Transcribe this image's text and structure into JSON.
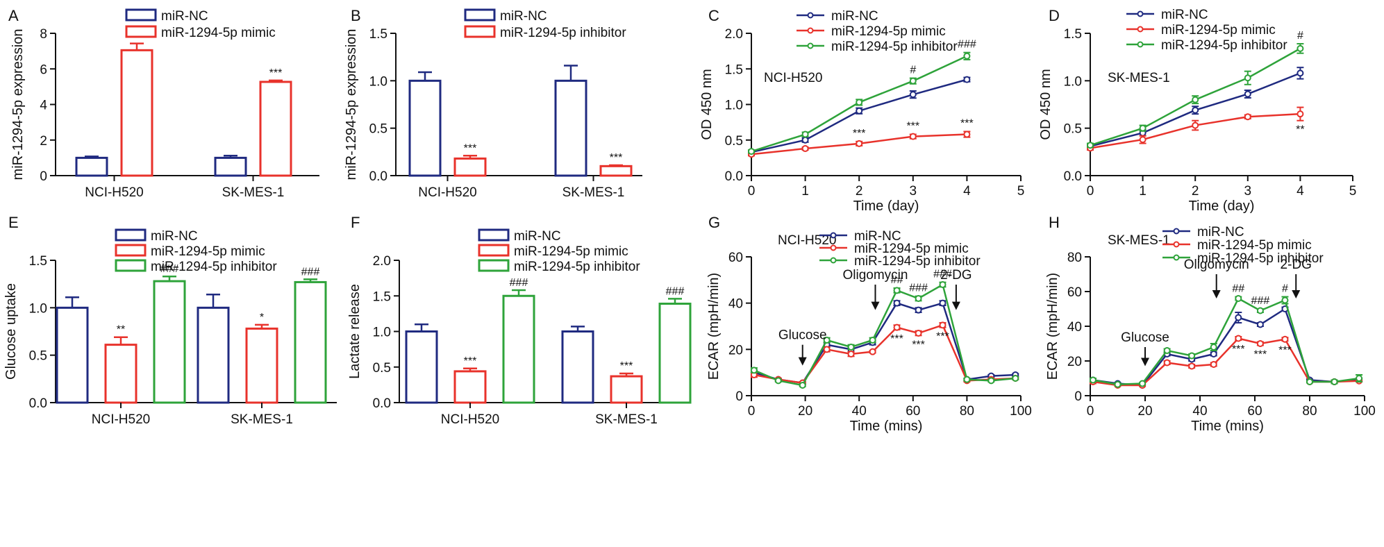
{
  "colors": {
    "nc": "#1f2a80",
    "mimic": "#e8322b",
    "inhibitor": "#2ea33a",
    "axis": "#111111"
  },
  "chart_data": [
    {
      "id": "A",
      "type": "bar",
      "panel_label": "A",
      "ylabel": "miR-1294-5p expression",
      "xlabel": "",
      "ylim": [
        0,
        8
      ],
      "yticks": [
        "0",
        "2",
        "4",
        "6",
        "8"
      ],
      "categories": [
        "NCI-H520",
        "SK-MES-1"
      ],
      "legend": [
        "miR-NC",
        "miR-1294-5p mimic"
      ],
      "series": [
        {
          "name": "miR-NC",
          "color": "nc",
          "values": [
            1.0,
            1.0
          ],
          "errors": [
            0.08,
            0.12
          ],
          "sig": [
            "",
            ""
          ]
        },
        {
          "name": "miR-1294-5p mimic",
          "color": "mimic",
          "values": [
            7.05,
            5.27
          ],
          "errors": [
            0.38,
            0.08
          ],
          "sig": [
            "***",
            "***"
          ]
        }
      ]
    },
    {
      "id": "B",
      "type": "bar",
      "panel_label": "B",
      "ylabel": "miR-1294-5p expression",
      "xlabel": "",
      "ylim": [
        0,
        1.5
      ],
      "yticks": [
        "0.0",
        "0.5",
        "1.0",
        "1.5"
      ],
      "categories": [
        "NCI-H520",
        "SK-MES-1"
      ],
      "legend": [
        "miR-NC",
        "miR-1294-5p inhibitor"
      ],
      "series": [
        {
          "name": "miR-NC",
          "color": "nc",
          "values": [
            1.0,
            1.0
          ],
          "errors": [
            0.09,
            0.16
          ],
          "sig": [
            "",
            ""
          ]
        },
        {
          "name": "miR-1294-5p inhibitor",
          "color": "mimic",
          "values": [
            0.18,
            0.1
          ],
          "errors": [
            0.03,
            0.01
          ],
          "sig": [
            "***",
            "***"
          ]
        }
      ]
    },
    {
      "id": "C",
      "type": "line",
      "panel_label": "C",
      "annotation": "NCI-H520",
      "ylabel": "OD 450 nm",
      "xlabel": "Time (day)",
      "xlim": [
        0,
        5
      ],
      "xticks": [
        "0",
        "1",
        "2",
        "3",
        "4",
        "5"
      ],
      "ylim": [
        0,
        2.0
      ],
      "yticks": [
        "0.0",
        "0.5",
        "1.0",
        "1.5",
        "2.0"
      ],
      "x": [
        0,
        1,
        2,
        3,
        4
      ],
      "legend": [
        "miR-NC",
        "miR-1294-5p  mimic",
        "miR-1294-5p  inhibitor"
      ],
      "series": [
        {
          "name": "miR-NC",
          "color": "nc",
          "values": [
            0.33,
            0.5,
            0.91,
            1.14,
            1.35
          ],
          "errors": [
            0.02,
            0.03,
            0.04,
            0.05,
            0.03
          ],
          "sig": [
            "",
            "",
            "",
            "",
            ""
          ]
        },
        {
          "name": "miR-1294-5p mimic",
          "color": "mimic",
          "values": [
            0.3,
            0.38,
            0.45,
            0.55,
            0.58
          ],
          "errors": [
            0.02,
            0.02,
            0.03,
            0.03,
            0.04
          ],
          "sig": [
            "",
            "",
            "***",
            "***",
            "***"
          ]
        },
        {
          "name": "miR-1294-5p inhibitor",
          "color": "inhibitor",
          "values": [
            0.34,
            0.58,
            1.03,
            1.33,
            1.68
          ],
          "errors": [
            0.02,
            0.03,
            0.04,
            0.04,
            0.05
          ],
          "sig": [
            "",
            "",
            "",
            "#",
            "###"
          ]
        }
      ]
    },
    {
      "id": "D",
      "type": "line",
      "panel_label": "D",
      "annotation": "SK-MES-1",
      "ylabel": "OD 450 nm",
      "xlabel": "Time (day)",
      "xlim": [
        0,
        5
      ],
      "xticks": [
        "0",
        "1",
        "2",
        "3",
        "4",
        "5"
      ],
      "ylim": [
        0,
        1.5
      ],
      "yticks": [
        "0.0",
        "0.5",
        "1.0",
        "1.5"
      ],
      "x": [
        0,
        1,
        2,
        3,
        4
      ],
      "legend": [
        "miR-NC",
        "miR-1294-5p  mimic",
        "miR-1294-5p  inhibitor"
      ],
      "series": [
        {
          "name": "miR-NC",
          "color": "nc",
          "values": [
            0.31,
            0.45,
            0.69,
            0.86,
            1.08
          ],
          "errors": [
            0.02,
            0.03,
            0.04,
            0.04,
            0.06
          ],
          "sig": [
            "",
            "",
            "",
            "",
            ""
          ]
        },
        {
          "name": "miR-1294-5p mimic",
          "color": "mimic",
          "values": [
            0.29,
            0.38,
            0.53,
            0.62,
            0.65
          ],
          "errors": [
            0.02,
            0.04,
            0.05,
            0.02,
            0.07
          ],
          "sig": [
            "",
            "",
            "",
            "",
            "**"
          ]
        },
        {
          "name": "miR-1294-5p inhibitor",
          "color": "inhibitor",
          "values": [
            0.32,
            0.5,
            0.8,
            1.03,
            1.34
          ],
          "errors": [
            0.02,
            0.03,
            0.04,
            0.07,
            0.05
          ],
          "sig": [
            "",
            "",
            "",
            "",
            "#"
          ]
        }
      ]
    },
    {
      "id": "E",
      "type": "bar",
      "panel_label": "E",
      "ylabel": "Glucose uptake",
      "xlabel": "",
      "ylim": [
        0,
        1.5
      ],
      "yticks": [
        "0.0",
        "0.5",
        "1.0",
        "1.5"
      ],
      "categories": [
        "NCI-H520",
        "SK-MES-1"
      ],
      "legend": [
        "miR-NC",
        "miR-1294-5p  mimic",
        "miR-1294-5p  inhibitor"
      ],
      "series": [
        {
          "name": "miR-NC",
          "color": "nc",
          "values": [
            1.0,
            1.0
          ],
          "errors": [
            0.11,
            0.14
          ],
          "sig": [
            "",
            ""
          ]
        },
        {
          "name": "miR-1294-5p mimic",
          "color": "mimic",
          "values": [
            0.61,
            0.78
          ],
          "errors": [
            0.08,
            0.04
          ],
          "sig": [
            "**",
            "*"
          ]
        },
        {
          "name": "miR-1294-5p inhibitor",
          "color": "inhibitor",
          "values": [
            1.28,
            1.27
          ],
          "errors": [
            0.05,
            0.03
          ],
          "sig": [
            "###",
            "###"
          ]
        }
      ]
    },
    {
      "id": "F",
      "type": "bar",
      "panel_label": "F",
      "ylabel": "Lactate release",
      "xlabel": "",
      "ylim": [
        0,
        2.0
      ],
      "yticks": [
        "0.0",
        "0.5",
        "1.0",
        "1.5",
        "2.0"
      ],
      "categories": [
        "NCI-H520",
        "SK-MES-1"
      ],
      "legend": [
        "miR-NC",
        "miR-1294-5p  mimic",
        "miR-1294-5p  inhibitor"
      ],
      "series": [
        {
          "name": "miR-NC",
          "color": "nc",
          "values": [
            1.0,
            1.0
          ],
          "errors": [
            0.1,
            0.07
          ],
          "sig": [
            "",
            ""
          ]
        },
        {
          "name": "miR-1294-5p mimic",
          "color": "mimic",
          "values": [
            0.44,
            0.37
          ],
          "errors": [
            0.04,
            0.04
          ],
          "sig": [
            "***",
            "***"
          ]
        },
        {
          "name": "miR-1294-5p inhibitor",
          "color": "inhibitor",
          "values": [
            1.5,
            1.39
          ],
          "errors": [
            0.08,
            0.07
          ],
          "sig": [
            "###",
            "###"
          ]
        }
      ]
    },
    {
      "id": "G",
      "type": "line",
      "panel_label": "G",
      "annotation": "NCI-H520",
      "ylabel": "ECAR (mpH/min)",
      "xlabel": "Time (mins)",
      "xlim": [
        0,
        100
      ],
      "xticks": [
        "0",
        "20",
        "40",
        "60",
        "80",
        "100"
      ],
      "ylim": [
        0,
        60
      ],
      "yticks": [
        "0",
        "20",
        "40",
        "60"
      ],
      "x": [
        1,
        10,
        19,
        28,
        37,
        45,
        54,
        62,
        71,
        80,
        89,
        98
      ],
      "legend": [
        "miR-NC",
        "miR-1294-5p  mimic",
        "miR-1294-5p inhibitor"
      ],
      "series": [
        {
          "name": "miR-NC",
          "color": "nc",
          "values": [
            10,
            7,
            5.5,
            22,
            20,
            23,
            40,
            37,
            40,
            7,
            8.5,
            9
          ],
          "errors": [
            1,
            0.5,
            0.5,
            1,
            1,
            1,
            1,
            1,
            1,
            0.5,
            0.5,
            0.5
          ],
          "sig": [
            "",
            "",
            "",
            "",
            "",
            "",
            "",
            "",
            "",
            "",
            "",
            ""
          ]
        },
        {
          "name": "miR-1294-5p mimic",
          "color": "mimic",
          "values": [
            9,
            7,
            5.5,
            20,
            18,
            19,
            29.5,
            27,
            30.5,
            6.5,
            7,
            7.5
          ],
          "errors": [
            1,
            0.5,
            0.5,
            1,
            1,
            0.5,
            1,
            1,
            1,
            0.5,
            0.5,
            0.5
          ],
          "sig": [
            "",
            "",
            "",
            "",
            "",
            "",
            "***",
            "***",
            "***",
            "",
            "",
            ""
          ]
        },
        {
          "name": "miR-1294-5p inhibitor",
          "color": "inhibitor",
          "values": [
            11,
            6.5,
            4.5,
            24,
            21,
            24,
            45.5,
            42,
            48,
            7,
            6.5,
            7.5
          ],
          "errors": [
            1,
            0.5,
            0.5,
            1,
            1,
            1,
            1,
            1,
            1,
            0.5,
            0.5,
            0.5
          ],
          "sig": [
            "",
            "",
            "",
            "",
            "",
            "",
            "##",
            "###",
            "###",
            "",
            "",
            ""
          ]
        }
      ],
      "arrows": [
        {
          "label": "Glucose",
          "x": 19,
          "from": 22,
          "to": 13
        },
        {
          "label": "Oligomycin",
          "x": 46,
          "from": 48,
          "to": 37
        },
        {
          "label": "2-DG",
          "x": 76,
          "from": 48,
          "to": 37
        }
      ]
    },
    {
      "id": "H",
      "type": "line",
      "panel_label": "H",
      "annotation": "SK-MES-1",
      "ylabel": "ECAR (mpH/min)",
      "xlabel": "Time (mins)",
      "xlim": [
        0,
        100
      ],
      "xticks": [
        "0",
        "20",
        "40",
        "60",
        "80",
        "100"
      ],
      "ylim": [
        0,
        80
      ],
      "yticks": [
        "0",
        "20",
        "40",
        "60",
        "80"
      ],
      "x": [
        1,
        10,
        19,
        28,
        37,
        45,
        54,
        62,
        71,
        80,
        89,
        98
      ],
      "legend": [
        "miR-NC",
        "miR-1294-5p  mimic",
        "miR-1294-5p  inhibitor"
      ],
      "series": [
        {
          "name": "miR-NC",
          "color": "nc",
          "values": [
            9,
            7,
            6,
            24,
            21,
            24,
            45,
            41,
            50,
            9,
            8,
            9
          ],
          "errors": [
            1,
            0.5,
            0.5,
            1,
            1,
            1,
            3,
            1,
            1,
            0.5,
            1,
            1
          ],
          "sig": [
            "",
            "",
            "",
            "",
            "",
            "",
            "",
            "",
            "",
            "",
            "",
            ""
          ]
        },
        {
          "name": "miR-1294-5p mimic",
          "color": "mimic",
          "values": [
            8,
            6,
            6,
            19,
            17,
            18,
            33,
            30,
            32.5,
            8,
            8,
            8.5
          ],
          "errors": [
            1,
            0.5,
            0.5,
            1,
            1,
            1,
            1,
            1,
            1,
            0.5,
            0.5,
            0.5
          ],
          "sig": [
            "",
            "",
            "",
            "",
            "",
            "",
            "***",
            "***",
            "***",
            "",
            "",
            ""
          ]
        },
        {
          "name": "miR-1294-5p inhibitor",
          "color": "inhibitor",
          "values": [
            9,
            6.5,
            7,
            26,
            23,
            28,
            56,
            49,
            55,
            8,
            8,
            10
          ],
          "errors": [
            1,
            0.5,
            0.5,
            1,
            1,
            2,
            1,
            1,
            2,
            0.5,
            1,
            2
          ],
          "sig": [
            "",
            "",
            "",
            "",
            "",
            "",
            "##",
            "###",
            "#",
            "",
            "",
            ""
          ]
        }
      ],
      "arrows": [
        {
          "label": "Glucose",
          "x": 20,
          "from": 28,
          "to": 17
        },
        {
          "label": "Oligomycin",
          "x": 46,
          "from": 70,
          "to": 56
        },
        {
          "label": "2-DG",
          "x": 75,
          "from": 70,
          "to": 56
        }
      ]
    }
  ]
}
